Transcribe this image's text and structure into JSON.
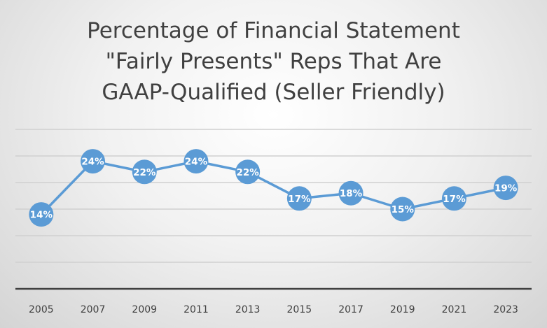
{
  "chart_data": {
    "type": "line",
    "title_lines": [
      "Percentage of Financial Statement",
      "\"Fairly Presents\" Reps That Are",
      "GAAP-Qualified (Seller Friendly)"
    ],
    "categories": [
      "2005",
      "2007",
      "2009",
      "2011",
      "2013",
      "2015",
      "2017",
      "2019",
      "2021",
      "2023"
    ],
    "series": [
      {
        "values": [
          14,
          24,
          22,
          24,
          22,
          17,
          18,
          15,
          17,
          19
        ],
        "labels": [
          "14%",
          "24%",
          "22%",
          "24%",
          "22%",
          "17%",
          "18%",
          "15%",
          "17%",
          "19%"
        ]
      }
    ],
    "ylim": [
      0,
      30
    ],
    "grid": true,
    "colors": {
      "line": "#5b9bd5",
      "marker_label": "#ffffff",
      "gridline": "#d0d0d0",
      "axis": "#404040",
      "tick_text": "#404040"
    }
  }
}
